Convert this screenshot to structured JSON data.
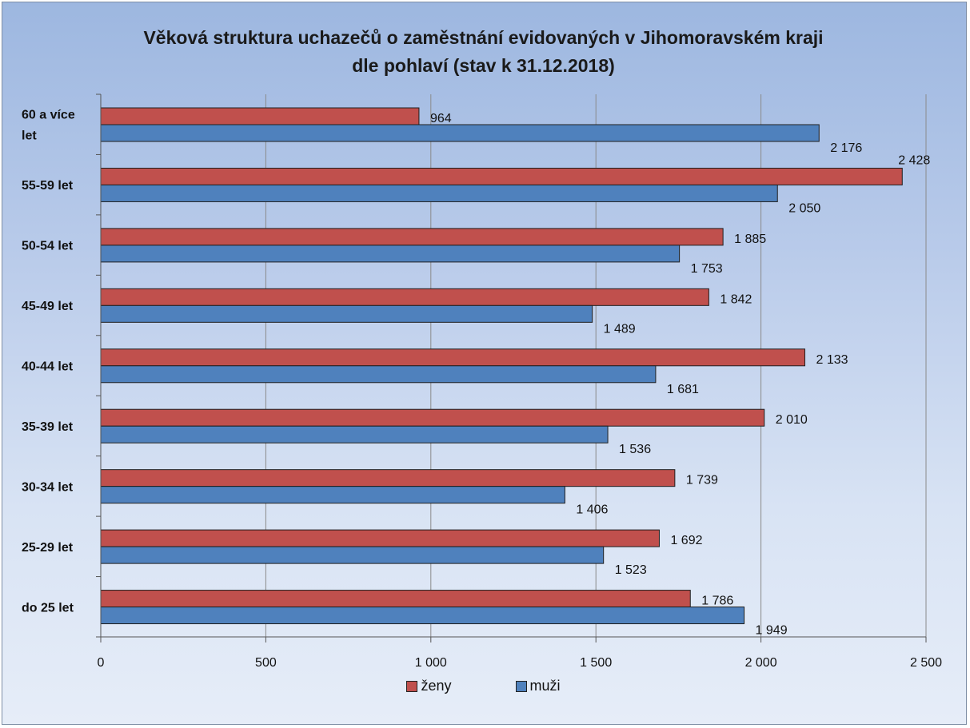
{
  "chart_data": {
    "type": "bar",
    "orientation": "horizontal",
    "title": [
      "Věková struktura uchazečů o zaměstnání evidovaných v Jihomoravském kraji",
      "dle pohlaví (stav k 31.12.2018)"
    ],
    "categories": [
      "60 a více let",
      "55-59 let",
      "50-54 let",
      "45-49 let",
      "40-44 let",
      "35-39 let",
      "30-34 let",
      "25-29 let",
      "do 25 let"
    ],
    "series": [
      {
        "name": "ženy",
        "color": "#c0504d",
        "values": [
          964,
          2428,
          1885,
          1842,
          2133,
          2010,
          1739,
          1692,
          1786
        ],
        "labels": [
          "964",
          "2 428",
          "1 885",
          "1 842",
          "2 133",
          "2 010",
          "1 739",
          "1 692",
          "1 786"
        ]
      },
      {
        "name": "muži",
        "color": "#4f81bd",
        "values": [
          2176,
          2050,
          1753,
          1489,
          1681,
          1536,
          1406,
          1523,
          1949
        ],
        "labels": [
          "2 176",
          "2 050",
          "1 753",
          "1 489",
          "1 681",
          "1 536",
          "1 406",
          "1 523",
          "1 949"
        ]
      }
    ],
    "xlim": [
      0,
      2500
    ],
    "xticks": [
      0,
      500,
      1000,
      1500,
      2000,
      2500
    ],
    "xtick_labels": [
      "0",
      "500",
      "1 000",
      "1 500",
      "2 000",
      "2 500"
    ],
    "grid": true,
    "legend_position": "bottom"
  }
}
